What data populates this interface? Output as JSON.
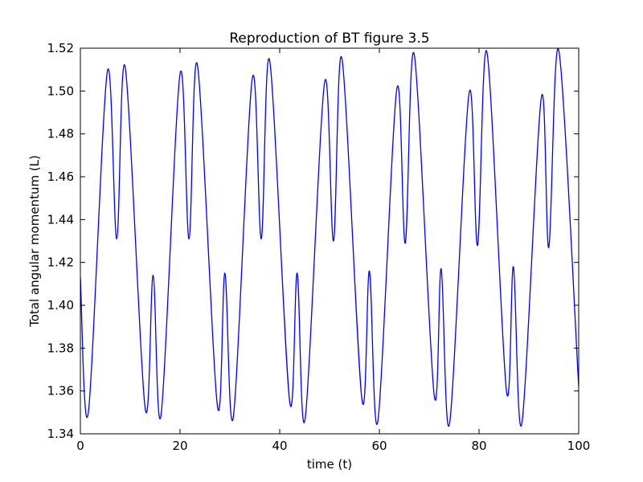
{
  "chart_data": {
    "type": "line",
    "title": "Reproduction of BT figure 3.5",
    "xlabel": "time (t)",
    "ylabel": "Total angular momentum (L)",
    "xlim": [
      0,
      100
    ],
    "ylim": [
      1.34,
      1.52
    ],
    "x_ticks": [
      0,
      20,
      40,
      60,
      80,
      100
    ],
    "x_tick_labels": [
      "0",
      "20",
      "40",
      "60",
      "80",
      "100"
    ],
    "y_ticks": [
      1.34,
      1.36,
      1.38,
      1.4,
      1.42,
      1.44,
      1.46,
      1.48,
      1.5,
      1.52
    ],
    "y_tick_labels": [
      "1.34",
      "1.36",
      "1.38",
      "1.40",
      "1.42",
      "1.44",
      "1.46",
      "1.48",
      "1.50",
      "1.52"
    ],
    "grid": false,
    "line_color": "#0000ff",
    "series": [
      {
        "x": [
          0,
          1.6,
          5.4,
          7.3,
          9.0,
          13.0,
          14.6,
          16.2,
          20.0,
          21.8,
          23.5,
          27.5,
          29.0,
          30.7,
          34.5,
          36.3,
          38.0,
          42.0,
          43.5,
          45.1,
          49.0,
          50.8,
          52.5,
          56.5,
          58.0,
          59.7,
          63.5,
          65.2,
          67.0,
          71.0,
          72.4,
          74.1,
          78.0,
          79.7,
          81.6,
          85.5,
          86.9,
          88.6,
          92.5,
          94.0,
          96.0,
          100.0
        ],
        "y": [
          1.413,
          1.35,
          1.509,
          1.431,
          1.511,
          1.352,
          1.414,
          1.349,
          1.508,
          1.431,
          1.512,
          1.353,
          1.415,
          1.348,
          1.506,
          1.431,
          1.514,
          1.355,
          1.415,
          1.347,
          1.504,
          1.43,
          1.515,
          1.356,
          1.416,
          1.346,
          1.501,
          1.429,
          1.517,
          1.358,
          1.417,
          1.345,
          1.499,
          1.428,
          1.518,
          1.36,
          1.418,
          1.345,
          1.497,
          1.427,
          1.519,
          1.362
        ]
      }
    ]
  }
}
